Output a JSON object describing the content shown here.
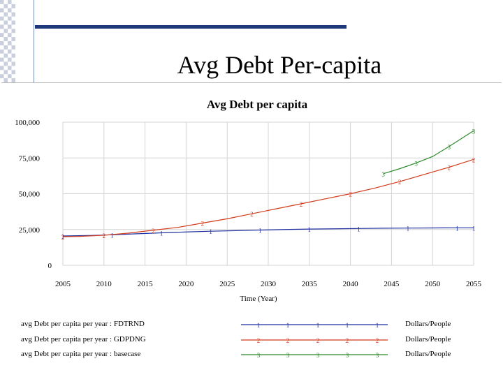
{
  "slide": {
    "title": "Avg Debt Per-capita"
  },
  "chart_data": {
    "type": "line",
    "title": "Avg Debt per capita",
    "xlabel": "Time (Year)",
    "ylabel": "",
    "xlim": [
      2005,
      2055
    ],
    "ylim": [
      0,
      100000
    ],
    "x_ticks": [
      "2005",
      "2010",
      "2015",
      "2020",
      "2025",
      "2030",
      "2035",
      "2040",
      "2045",
      "2050",
      "2055"
    ],
    "y_ticks": [
      "100,000",
      "75,000",
      "50,000",
      "25,000",
      "0"
    ],
    "grid": true,
    "series": [
      {
        "name": "avg Debt per capita per year : FDTRND",
        "marker": "1",
        "color": "#1f2fa0",
        "unit": "Dollars/People",
        "x": [
          2005,
          2008,
          2011,
          2014,
          2017,
          2020,
          2023,
          2026,
          2029,
          2032,
          2035,
          2038,
          2041,
          2044,
          2047,
          2050,
          2053,
          2055
        ],
        "y": [
          20500,
          20800,
          21300,
          22000,
          22700,
          23300,
          23800,
          24200,
          24600,
          25000,
          25300,
          25500,
          25700,
          25900,
          26000,
          26100,
          26200,
          26200
        ]
      },
      {
        "name": "avg Debt per capita per year : GDPDNG",
        "marker": "2",
        "color": "#d23a1a",
        "unit": "Dollars/People",
        "x": [
          2005,
          2007,
          2010,
          2013,
          2016,
          2019,
          2022,
          2025,
          2028,
          2031,
          2034,
          2037,
          2040,
          2043,
          2046,
          2049,
          2052,
          2055
        ],
        "y": [
          20000,
          20200,
          21000,
          22500,
          24500,
          26500,
          29500,
          32500,
          36000,
          39500,
          43000,
          46500,
          50000,
          54000,
          58500,
          63500,
          68500,
          74000
        ]
      },
      {
        "name": "avg Debt per capita per year : basecase",
        "marker": "3",
        "color": "#2b8a2b",
        "unit": "Dollars/People",
        "x": [
          2044,
          2046,
          2048,
          2050,
          2052,
          2055
        ],
        "y": [
          64000,
          67500,
          71500,
          76000,
          83000,
          94000
        ]
      }
    ]
  }
}
